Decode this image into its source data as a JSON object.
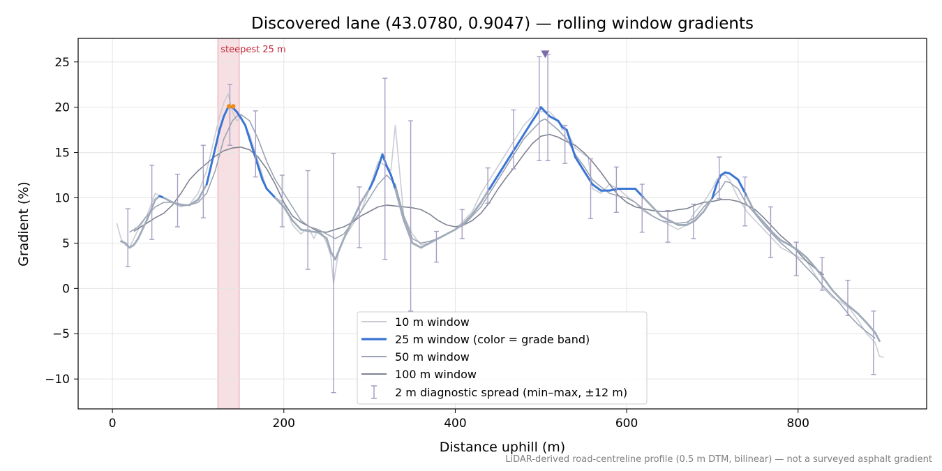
{
  "footnote": "LiDAR-derived road-centreline profile (0.5 m DTM, bilinear) — not a surveyed asphalt gradient",
  "colors": {
    "w10": "#c9ccd4",
    "w25": "#3a75d4",
    "w25_low": "#a0abba",
    "w50": "#9aa3b2",
    "w100": "#7d8290",
    "errorbar": "#a69ec2",
    "band": "#f0c2c8",
    "band_label": "#c4283a",
    "orange": "#f08c1a",
    "marker": "#7b6ca6"
  },
  "chart_data": {
    "type": "line",
    "title": "Discovered lane (43.0780, 0.9047) — rolling window gradients",
    "xlabel": "Distance uphill (m)",
    "ylabel": "Gradient (%)",
    "xlim": [
      -40,
      950
    ],
    "ylim": [
      -13.3,
      27.6
    ],
    "xticks": [
      0,
      200,
      400,
      600,
      800
    ],
    "yticks": [
      -10,
      -5,
      0,
      5,
      10,
      15,
      20,
      25
    ],
    "grid": true,
    "legend_position": "lower-center",
    "legend": [
      "10 m window",
      "25 m window (color = grade band)",
      "50 m window",
      "100 m window",
      "2 m diagnostic spread (min–max, ±12 m)"
    ],
    "steepest_band": {
      "x0": 123,
      "x1": 148,
      "label": "steepest 25 m"
    },
    "steepest_marker": {
      "x": 505,
      "y": 25.8
    },
    "steepest_points": [
      {
        "x": 136,
        "y": 20.1
      },
      {
        "x": 141,
        "y": 20.1
      }
    ],
    "grade_band_threshold": 10,
    "series": [
      {
        "name": "10 m window",
        "x": [
          5,
          10,
          15,
          20,
          25,
          30,
          40,
          50,
          55,
          60,
          70,
          75,
          80,
          90,
          100,
          110,
          115,
          120,
          125,
          130,
          135,
          140,
          145,
          150,
          160,
          170,
          175,
          180,
          190,
          200,
          210,
          220,
          225,
          230,
          235,
          240,
          245,
          250,
          255,
          258,
          262,
          265,
          270,
          280,
          290,
          300,
          310,
          320,
          325,
          330,
          340,
          350,
          360,
          370,
          380,
          390,
          400,
          410,
          420,
          430,
          440,
          450,
          460,
          470,
          480,
          490,
          495,
          500,
          505,
          510,
          520,
          525,
          530,
          540,
          550,
          555,
          560,
          570,
          575,
          580,
          590,
          600,
          610,
          620,
          630,
          640,
          650,
          660,
          670,
          680,
          690,
          700,
          705,
          710,
          715,
          720,
          730,
          740,
          750,
          760,
          770,
          780,
          790,
          800,
          810,
          820,
          830,
          840,
          850,
          860,
          870,
          880,
          890,
          895,
          900
        ],
        "y": [
          7.2,
          5.5,
          4.8,
          4.5,
          5.5,
          6.5,
          8,
          10.5,
          10.2,
          10,
          9.5,
          9.2,
          9,
          9.3,
          10.5,
          13,
          15,
          17,
          19,
          20.5,
          21.5,
          19.5,
          18.5,
          18.8,
          17,
          14,
          12.5,
          11,
          10,
          9.5,
          7,
          6,
          6.5,
          6.5,
          5.5,
          6.5,
          6,
          5,
          3.5,
          0.5,
          3,
          4.5,
          5.5,
          7,
          8.5,
          11,
          14,
          13.5,
          13,
          18,
          8,
          6,
          4.8,
          5,
          5.5,
          6,
          6.5,
          7.5,
          8.5,
          10.5,
          12,
          13.5,
          15,
          16.5,
          18,
          19,
          20,
          19.5,
          19.5,
          19.5,
          18.5,
          17.5,
          17.5,
          15.5,
          14.8,
          14.5,
          11,
          10.5,
          11,
          11.5,
          11,
          10.2,
          9.5,
          8.5,
          8,
          7.5,
          7,
          6.5,
          7,
          8.5,
          9.5,
          11,
          12,
          12.5,
          12.5,
          12,
          10,
          8.5,
          7.5,
          6.5,
          5.5,
          4.5,
          4,
          3.5,
          3,
          1.5,
          0,
          -1,
          -1.5,
          -2.2,
          -3.5,
          -5,
          -6,
          -7.5,
          -7.6
        ]
      },
      {
        "name": "25 m window (color = grade band)",
        "x": [
          10,
          15,
          20,
          25,
          30,
          40,
          50,
          55,
          60,
          70,
          80,
          90,
          100,
          110,
          115,
          120,
          125,
          130,
          135,
          140,
          145,
          150,
          155,
          160,
          165,
          170,
          175,
          180,
          185,
          190,
          195,
          200,
          210,
          220,
          230,
          240,
          250,
          255,
          260,
          270,
          280,
          290,
          300,
          305,
          310,
          315,
          320,
          325,
          330,
          340,
          350,
          360,
          370,
          380,
          390,
          400,
          410,
          420,
          430,
          440,
          450,
          460,
          470,
          480,
          490,
          495,
          500,
          505,
          510,
          520,
          525,
          530,
          535,
          540,
          550,
          560,
          570,
          580,
          590,
          600,
          605,
          610,
          615,
          620,
          630,
          640,
          650,
          660,
          670,
          680,
          690,
          700,
          705,
          710,
          715,
          720,
          730,
          740,
          750,
          760,
          770,
          780,
          790,
          800,
          810,
          820,
          830,
          840,
          850,
          860,
          870,
          880,
          890,
          895
        ],
        "y": [
          5.2,
          5,
          4.5,
          4.8,
          5.5,
          7.5,
          9.8,
          10.2,
          10,
          9.5,
          9.2,
          9.2,
          9.8,
          11.5,
          13.5,
          15.5,
          17.5,
          19,
          20,
          20,
          19.5,
          18.8,
          18,
          16.5,
          15,
          13.5,
          12,
          11,
          10.5,
          10,
          9.5,
          9,
          7.5,
          6.5,
          6.3,
          6.2,
          5.5,
          4,
          3.2,
          5.5,
          7.5,
          9.5,
          11,
          12,
          13.3,
          14.8,
          13.5,
          12.5,
          11,
          7.5,
          5,
          4.5,
          5,
          5.5,
          6,
          6.5,
          7.2,
          8.2,
          9.5,
          11,
          12.5,
          14,
          15.5,
          17,
          18.5,
          19.2,
          20,
          19.5,
          19,
          18.5,
          17.8,
          17.5,
          16,
          14.5,
          13,
          11.5,
          10.8,
          10.8,
          11,
          11,
          11,
          11,
          10.5,
          10,
          9,
          8,
          7.5,
          7,
          7,
          7.5,
          8.5,
          10,
          11.5,
          12.5,
          12.8,
          12.7,
          12,
          10.2,
          8.3,
          7.3,
          6.2,
          5.3,
          4.8,
          4.2,
          3.4,
          2.3,
          1.1,
          -0.2,
          -1.2,
          -2.0,
          -2.8,
          -3.8,
          -4.9,
          -5.8
        ]
      },
      {
        "name": "50 m window",
        "x": [
          20,
          25,
          30,
          40,
          50,
          60,
          70,
          80,
          90,
          100,
          110,
          120,
          130,
          140,
          145,
          150,
          160,
          170,
          180,
          190,
          200,
          210,
          220,
          230,
          240,
          250,
          260,
          270,
          280,
          290,
          300,
          310,
          320,
          330,
          340,
          350,
          360,
          370,
          380,
          390,
          400,
          410,
          420,
          430,
          440,
          450,
          460,
          470,
          480,
          490,
          500,
          505,
          510,
          520,
          530,
          540,
          550,
          560,
          570,
          580,
          590,
          600,
          610,
          620,
          630,
          640,
          650,
          660,
          670,
          680,
          690,
          700,
          710,
          715,
          720,
          730,
          740,
          750,
          760,
          770,
          780,
          790,
          800,
          810,
          820,
          830,
          840,
          850,
          860,
          870,
          880,
          890
        ],
        "y": [
          6.2,
          6.5,
          6.8,
          8,
          9,
          9.5,
          9.5,
          9.3,
          9.2,
          9.5,
          10.5,
          13,
          16.5,
          18.5,
          19,
          19.2,
          18.5,
          16.5,
          14,
          12,
          10.5,
          9,
          7.5,
          6.8,
          6.5,
          6,
          5.5,
          6,
          7.3,
          8.5,
          10,
          11.5,
          12.5,
          11.5,
          8,
          5.5,
          5,
          5.2,
          5.5,
          6,
          6.5,
          7,
          8,
          9,
          10.5,
          12,
          13.5,
          15,
          16.5,
          17.5,
          18.5,
          18.7,
          18.3,
          17.5,
          16.5,
          14.8,
          13.5,
          12,
          11.2,
          10.5,
          10.2,
          10,
          9.5,
          8.7,
          8,
          7.5,
          7.3,
          7.2,
          7.3,
          7.8,
          9,
          10,
          11,
          11.8,
          11.7,
          11,
          9.3,
          8.2,
          7,
          6,
          5,
          4.2,
          3.3,
          2.3,
          1.3,
          0.2,
          -0.8,
          -1.8,
          -3,
          -4,
          -4.8,
          -5.5
        ]
      },
      {
        "name": "100 m window",
        "x": [
          25,
          30,
          40,
          50,
          60,
          70,
          80,
          90,
          100,
          110,
          120,
          130,
          140,
          150,
          160,
          170,
          180,
          190,
          200,
          210,
          220,
          230,
          240,
          250,
          260,
          270,
          280,
          290,
          300,
          310,
          320,
          330,
          340,
          350,
          360,
          370,
          380,
          390,
          400,
          410,
          420,
          430,
          440,
          450,
          460,
          470,
          480,
          490,
          500,
          510,
          520,
          530,
          540,
          550,
          560,
          570,
          580,
          590,
          600,
          610,
          620,
          630,
          640,
          650,
          660,
          670,
          680,
          690,
          700,
          710,
          720,
          730,
          740,
          750,
          760,
          770,
          780,
          790,
          800,
          810,
          820,
          830
        ],
        "y": [
          6.3,
          6.6,
          7.2,
          7.8,
          8.3,
          9.2,
          10.5,
          12,
          13,
          13.8,
          14.6,
          15.2,
          15.5,
          15.6,
          15.3,
          14.5,
          13.2,
          11.5,
          9.5,
          8,
          7.3,
          6.8,
          6.3,
          6.2,
          6.5,
          6.8,
          7.3,
          8,
          8.5,
          9,
          9.2,
          9.1,
          9,
          8.9,
          8.7,
          8.2,
          7.5,
          7,
          6.8,
          7,
          7.5,
          8.3,
          9.5,
          11,
          12.3,
          13.5,
          14.8,
          16,
          16.8,
          17,
          16.7,
          16.2,
          15.8,
          15,
          14,
          12.8,
          11.5,
          10.3,
          9.5,
          9,
          8.8,
          8.6,
          8.5,
          8.5,
          8.7,
          8.8,
          9.2,
          9.5,
          9.6,
          9.8,
          9.8,
          9.6,
          9.2,
          8.7,
          7.8,
          6.8,
          5.8,
          5,
          4,
          3,
          2.2,
          1.5
        ]
      }
    ],
    "error_bars": [
      {
        "x": 18,
        "low": 2.4,
        "high": 8.8
      },
      {
        "x": 46,
        "low": 5.4,
        "high": 13.6
      },
      {
        "x": 76,
        "low": 6.8,
        "high": 12.6
      },
      {
        "x": 106,
        "low": 7.8,
        "high": 15.8
      },
      {
        "x": 137,
        "low": 15.8,
        "high": 22.5
      },
      {
        "x": 167,
        "low": 12.3,
        "high": 19.6
      },
      {
        "x": 198,
        "low": 6.8,
        "high": 12.5
      },
      {
        "x": 228,
        "low": 2.1,
        "high": 13
      },
      {
        "x": 258,
        "low": -11.5,
        "high": 14.9
      },
      {
        "x": 288,
        "low": 4.5,
        "high": 11.2
      },
      {
        "x": 318,
        "low": 3.2,
        "high": 23.2
      },
      {
        "x": 348,
        "low": -2.5,
        "high": 18.5
      },
      {
        "x": 378,
        "low": 2.9,
        "high": 6.3
      },
      {
        "x": 408,
        "low": 5.5,
        "high": 8.7
      },
      {
        "x": 438,
        "low": 9.4,
        "high": 13.3
      },
      {
        "x": 468,
        "low": 13.2,
        "high": 19.7
      },
      {
        "x": 498,
        "low": 14.1,
        "high": 25.6
      },
      {
        "x": 508,
        "low": 14.1,
        "high": 25.8
      },
      {
        "x": 528,
        "low": 13.8,
        "high": 18
      },
      {
        "x": 558,
        "low": 7.7,
        "high": 14.3
      },
      {
        "x": 588,
        "low": 8.4,
        "high": 13.4
      },
      {
        "x": 618,
        "low": 6.2,
        "high": 11.5
      },
      {
        "x": 648,
        "low": 5.1,
        "high": 8.6
      },
      {
        "x": 678,
        "low": 5.5,
        "high": 9.3
      },
      {
        "x": 708,
        "low": 9.9,
        "high": 14.5
      },
      {
        "x": 738,
        "low": 6.9,
        "high": 12.3
      },
      {
        "x": 768,
        "low": 3.4,
        "high": 9
      },
      {
        "x": 798,
        "low": 1.4,
        "high": 5.1
      },
      {
        "x": 828,
        "low": -0.2,
        "high": 3.4
      },
      {
        "x": 858,
        "low": -3,
        "high": 0.9
      },
      {
        "x": 888,
        "low": -9.5,
        "high": -2.5
      }
    ]
  }
}
